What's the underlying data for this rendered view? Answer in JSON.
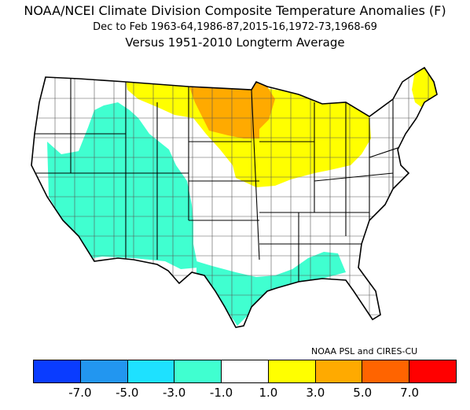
{
  "title": {
    "line1": "NOAA/NCEI Climate Division Composite Temperature Anomalies (F)",
    "line2": "Dec to Feb  1963-64,1986-87,2015-16,1972-73,1968-69",
    "line3": "Versus 1951-2010 Longterm Average"
  },
  "credit": "NOAA PSL and CIRES-CU",
  "legend": {
    "colors": [
      "#0a3cff",
      "#2296f0",
      "#1ee1ff",
      "#40ffd0",
      "#ffffff",
      "#ffff00",
      "#ffaa00",
      "#ff6400",
      "#ff0000"
    ],
    "labels": [
      "-7.0",
      "-5.0",
      "-3.0",
      "-1.0",
      "1.0",
      "3.0",
      "5.0",
      "7.0"
    ]
  },
  "map": {
    "regions": [
      {
        "name": "great-basin-southwest",
        "anomaly_bin": "-3.0 to -1.0",
        "color": "#40ffd0"
      },
      {
        "name": "texas-gulf-coast",
        "anomaly_bin": "-3.0 to -1.0",
        "color": "#40ffd0"
      },
      {
        "name": "northern-tier-and-great-lakes",
        "anomaly_bin": "1.0 to 3.0",
        "color": "#ffff00"
      },
      {
        "name": "northern-maine",
        "anomaly_bin": "1.0 to 3.0",
        "color": "#ffff00"
      },
      {
        "name": "north-dakota-minnesota",
        "anomaly_bin": "3.0 to 5.0",
        "color": "#ffaa00"
      }
    ]
  }
}
